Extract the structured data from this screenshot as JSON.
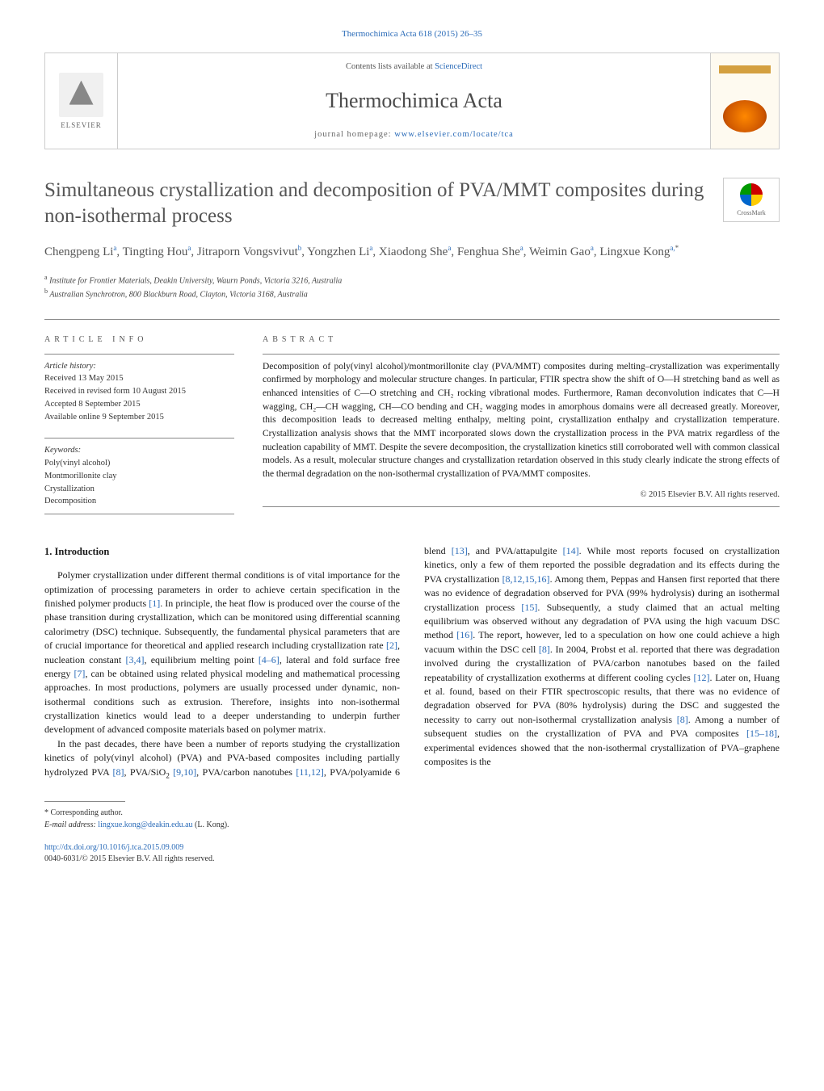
{
  "top_reference": "Thermochimica Acta 618 (2015) 26–35",
  "header": {
    "elsevier_label": "ELSEVIER",
    "contents_prefix": "Contents lists available at ",
    "contents_link": "ScienceDirect",
    "journal_name": "Thermochimica Acta",
    "homepage_prefix": "journal homepage: ",
    "homepage_link": "www.elsevier.com/locate/tca"
  },
  "crossmark_label": "CrossMark",
  "title": "Simultaneous crystallization and decomposition of PVA/MMT composites during non-isothermal process",
  "authors_html": "Chengpeng Li<sup>a</sup>, Tingting Hou<sup>a</sup>, Jitraporn Vongsvivut<sup>b</sup>, Yongzhen Li<sup>a</sup>, Xiaodong She<sup>a</sup>, Fenghua She<sup>a</sup>, Weimin Gao<sup>a</sup>, Lingxue Kong<sup>a,</sup><sup class=\"star\">*</sup>",
  "affiliations": {
    "a": "Institute for Frontier Materials, Deakin University, Waurn Ponds, Victoria 3216, Australia",
    "b": "Australian Synchrotron, 800 Blackburn Road, Clayton, Victoria 3168, Australia"
  },
  "info_label": "article info",
  "abstract_label": "abstract",
  "history": {
    "heading": "Article history:",
    "received": "Received 13 May 2015",
    "revised": "Received in revised form 10 August 2015",
    "accepted": "Accepted 8 September 2015",
    "online": "Available online 9 September 2015"
  },
  "keywords": {
    "heading": "Keywords:",
    "items": [
      "Poly(vinyl alcohol)",
      "Montmorillonite clay",
      "Crystallization",
      "Decomposition"
    ]
  },
  "abstract": "Decomposition of poly(vinyl alcohol)/montmorillonite clay (PVA/MMT) composites during melting–crystallization was experimentally confirmed by morphology and molecular structure changes. In particular, FTIR spectra show the shift of O—H stretching band as well as enhanced intensities of C—O stretching and CH₂ rocking vibrational modes. Furthermore, Raman deconvolution indicates that C—H wagging, CH₂—CH wagging, CH—CO bending and CH₂ wagging modes in amorphous domains were all decreased greatly. Moreover, this decomposition leads to decreased melting enthalpy, melting point, crystallization enthalpy and crystallization temperature. Crystallization analysis shows that the MMT incorporated slows down the crystallization process in the PVA matrix regardless of the nucleation capability of MMT. Despite the severe decomposition, the crystallization kinetics still corroborated well with common classical models. As a result, molecular structure changes and crystallization retardation observed in this study clearly indicate the strong effects of the thermal degradation on the non-isothermal crystallization of PVA/MMT composites.",
  "copyright": "© 2015 Elsevier B.V. All rights reserved.",
  "intro_heading": "1. Introduction",
  "intro_p1_pre": "Polymer crystallization under different thermal conditions is of vital importance for the optimization of processing parameters in order to achieve certain specification in the finished polymer products ",
  "intro_p1_c1": "[1]",
  "intro_p1_mid1": ". In principle, the heat flow is produced over the course of the phase transition during crystallization, which can be monitored using differential scanning calorimetry (DSC) technique. Subsequently, the fundamental physical parameters that are of crucial importance for theoretical and applied research including crystallization rate ",
  "intro_p1_c2": "[2]",
  "intro_p1_mid2": ", nucleation constant ",
  "intro_p1_c3": "[3,4]",
  "intro_p1_mid3": ", equilibrium melting point ",
  "intro_p1_c4": "[4–6]",
  "intro_p1_mid4": ", lateral and fold surface free energy ",
  "intro_p1_c5": "[7]",
  "intro_p1_post": ", can be obtained using related physical modeling and mathematical processing approaches. In most productions, polymers are usually processed under dynamic, non-isothermal conditions such as extrusion. Therefore, insights into non-isothermal crystallization kinetics would lead to a deeper understanding to underpin further development of advanced composite materials based on polymer matrix.",
  "intro_p2_pre": "In the past decades, there have been a number of reports studying the crystallization kinetics of poly(vinyl alcohol) (PVA) and PVA-based composites including partially hydrolyzed PVA ",
  "intro_p2_c1": "[8]",
  "intro_p2_a": ", PVA/SiO",
  "intro_p2_a2": " ",
  "intro_p2_c2": "[9,10]",
  "intro_p2_b": ", PVA/carbon nanotubes ",
  "intro_p2_c3": "[11,12]",
  "intro_p2_c": ", PVA/polyamide 6 blend ",
  "intro_p2_c4": "[13]",
  "intro_p2_d": ", and PVA/attapulgite ",
  "intro_p2_c5": "[14]",
  "intro_p2_e": ". While most reports focused on crystallization kinetics, only a few of them reported the possible degradation and its effects during the PVA crystallization ",
  "intro_p2_c6": "[8,12,15,16]",
  "intro_p2_f": ". Among them, Peppas and Hansen first reported that there was no evidence of degradation observed for PVA (99% hydrolysis) during an isothermal crystallization process ",
  "intro_p2_c7": "[15]",
  "intro_p2_g": ". Subsequently, a study claimed that an actual melting equilibrium was observed without any degradation of PVA using the high vacuum DSC method ",
  "intro_p2_c8": "[16]",
  "intro_p2_h": ". The report, however, led to a speculation on how one could achieve a high vacuum within the DSC cell ",
  "intro_p2_c9": "[8]",
  "intro_p2_i": ". In 2004, Probst et al. reported that there was degradation involved during the crystallization of PVA/carbon nanotubes based on the failed repeatability of crystallization exotherms at different cooling cycles ",
  "intro_p2_c10": "[12]",
  "intro_p2_j": ". Later on, Huang et al. found, based on their FTIR spectroscopic results, that there was no evidence of degradation observed for PVA (80% hydrolysis) during the DSC and suggested the necessity to carry out non-isothermal crystallization analysis ",
  "intro_p2_c11": "[8]",
  "intro_p2_k": ". Among a number of subsequent studies on the crystallization of PVA and PVA composites ",
  "intro_p2_c12": "[15–18]",
  "intro_p2_l": ", experimental evidences showed that the non-isothermal crystallization of PVA–graphene composites is the",
  "corr": {
    "star": "* Corresponding author.",
    "email_label": "E-mail address:",
    "email": "lingxue.kong@deakin.edu.au",
    "name": "(L. Kong)."
  },
  "doi": {
    "link": "http://dx.doi.org/10.1016/j.tca.2015.09.009",
    "issn_line": "0040-6031/© 2015 Elsevier B.V. All rights reserved."
  },
  "colors": {
    "link": "#2a6bb8",
    "heading_gray": "#555555",
    "border": "#cccccc",
    "rule": "#888888",
    "body": "#1a1a1a"
  }
}
